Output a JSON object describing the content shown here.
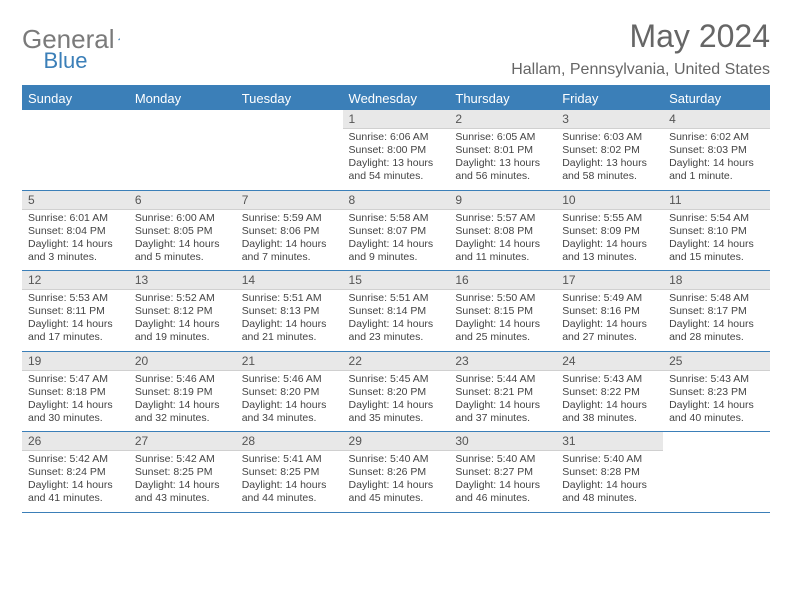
{
  "brand": {
    "part1": "General",
    "part2": "Blue"
  },
  "title": "May 2024",
  "location": "Hallam, Pennsylvania, United States",
  "colors": {
    "accent": "#3b7fb8",
    "header_text": "#666666",
    "day_bg": "#e8e8e8"
  },
  "day_headers": [
    "Sunday",
    "Monday",
    "Tuesday",
    "Wednesday",
    "Thursday",
    "Friday",
    "Saturday"
  ],
  "weeks": [
    [
      null,
      null,
      null,
      {
        "n": "1",
        "sunrise": "6:06 AM",
        "sunset": "8:00 PM",
        "daylight": "13 hours and 54 minutes."
      },
      {
        "n": "2",
        "sunrise": "6:05 AM",
        "sunset": "8:01 PM",
        "daylight": "13 hours and 56 minutes."
      },
      {
        "n": "3",
        "sunrise": "6:03 AM",
        "sunset": "8:02 PM",
        "daylight": "13 hours and 58 minutes."
      },
      {
        "n": "4",
        "sunrise": "6:02 AM",
        "sunset": "8:03 PM",
        "daylight": "14 hours and 1 minute."
      }
    ],
    [
      {
        "n": "5",
        "sunrise": "6:01 AM",
        "sunset": "8:04 PM",
        "daylight": "14 hours and 3 minutes."
      },
      {
        "n": "6",
        "sunrise": "6:00 AM",
        "sunset": "8:05 PM",
        "daylight": "14 hours and 5 minutes."
      },
      {
        "n": "7",
        "sunrise": "5:59 AM",
        "sunset": "8:06 PM",
        "daylight": "14 hours and 7 minutes."
      },
      {
        "n": "8",
        "sunrise": "5:58 AM",
        "sunset": "8:07 PM",
        "daylight": "14 hours and 9 minutes."
      },
      {
        "n": "9",
        "sunrise": "5:57 AM",
        "sunset": "8:08 PM",
        "daylight": "14 hours and 11 minutes."
      },
      {
        "n": "10",
        "sunrise": "5:55 AM",
        "sunset": "8:09 PM",
        "daylight": "14 hours and 13 minutes."
      },
      {
        "n": "11",
        "sunrise": "5:54 AM",
        "sunset": "8:10 PM",
        "daylight": "14 hours and 15 minutes."
      }
    ],
    [
      {
        "n": "12",
        "sunrise": "5:53 AM",
        "sunset": "8:11 PM",
        "daylight": "14 hours and 17 minutes."
      },
      {
        "n": "13",
        "sunrise": "5:52 AM",
        "sunset": "8:12 PM",
        "daylight": "14 hours and 19 minutes."
      },
      {
        "n": "14",
        "sunrise": "5:51 AM",
        "sunset": "8:13 PM",
        "daylight": "14 hours and 21 minutes."
      },
      {
        "n": "15",
        "sunrise": "5:51 AM",
        "sunset": "8:14 PM",
        "daylight": "14 hours and 23 minutes."
      },
      {
        "n": "16",
        "sunrise": "5:50 AM",
        "sunset": "8:15 PM",
        "daylight": "14 hours and 25 minutes."
      },
      {
        "n": "17",
        "sunrise": "5:49 AM",
        "sunset": "8:16 PM",
        "daylight": "14 hours and 27 minutes."
      },
      {
        "n": "18",
        "sunrise": "5:48 AM",
        "sunset": "8:17 PM",
        "daylight": "14 hours and 28 minutes."
      }
    ],
    [
      {
        "n": "19",
        "sunrise": "5:47 AM",
        "sunset": "8:18 PM",
        "daylight": "14 hours and 30 minutes."
      },
      {
        "n": "20",
        "sunrise": "5:46 AM",
        "sunset": "8:19 PM",
        "daylight": "14 hours and 32 minutes."
      },
      {
        "n": "21",
        "sunrise": "5:46 AM",
        "sunset": "8:20 PM",
        "daylight": "14 hours and 34 minutes."
      },
      {
        "n": "22",
        "sunrise": "5:45 AM",
        "sunset": "8:20 PM",
        "daylight": "14 hours and 35 minutes."
      },
      {
        "n": "23",
        "sunrise": "5:44 AM",
        "sunset": "8:21 PM",
        "daylight": "14 hours and 37 minutes."
      },
      {
        "n": "24",
        "sunrise": "5:43 AM",
        "sunset": "8:22 PM",
        "daylight": "14 hours and 38 minutes."
      },
      {
        "n": "25",
        "sunrise": "5:43 AM",
        "sunset": "8:23 PM",
        "daylight": "14 hours and 40 minutes."
      }
    ],
    [
      {
        "n": "26",
        "sunrise": "5:42 AM",
        "sunset": "8:24 PM",
        "daylight": "14 hours and 41 minutes."
      },
      {
        "n": "27",
        "sunrise": "5:42 AM",
        "sunset": "8:25 PM",
        "daylight": "14 hours and 43 minutes."
      },
      {
        "n": "28",
        "sunrise": "5:41 AM",
        "sunset": "8:25 PM",
        "daylight": "14 hours and 44 minutes."
      },
      {
        "n": "29",
        "sunrise": "5:40 AM",
        "sunset": "8:26 PM",
        "daylight": "14 hours and 45 minutes."
      },
      {
        "n": "30",
        "sunrise": "5:40 AM",
        "sunset": "8:27 PM",
        "daylight": "14 hours and 46 minutes."
      },
      {
        "n": "31",
        "sunrise": "5:40 AM",
        "sunset": "8:28 PM",
        "daylight": "14 hours and 48 minutes."
      },
      null
    ]
  ],
  "labels": {
    "sunrise": "Sunrise: ",
    "sunset": "Sunset: ",
    "daylight": "Daylight: "
  }
}
